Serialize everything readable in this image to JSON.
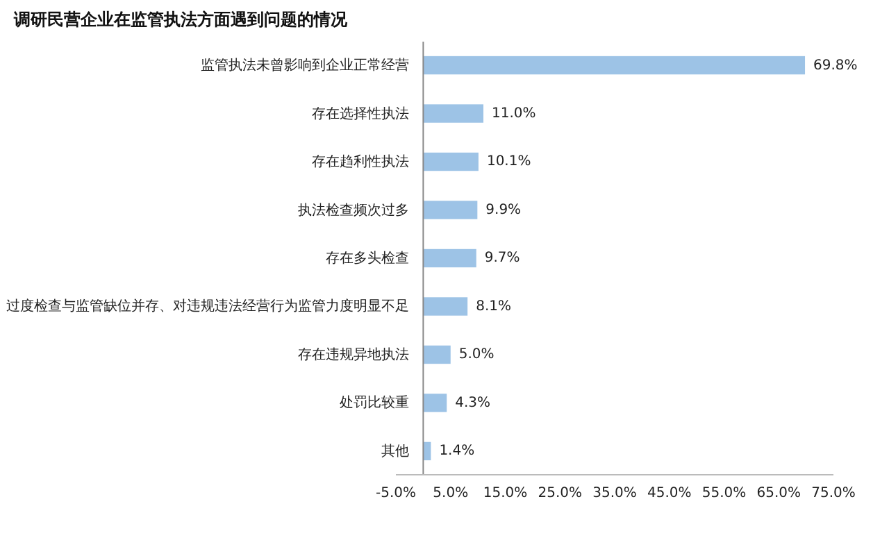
{
  "chart_data": {
    "type": "bar",
    "orientation": "horizontal",
    "title": "调研民营企业在监管执法方面遇到问题的情况",
    "categories": [
      "监管执法未曾影响到企业正常经营",
      "存在选择性执法",
      "存在趋利性执法",
      "执法检查频次过多",
      "存在多头检查",
      "过度检查与监管缺位并存、对违规违法经营行为监管力度明显不足",
      "存在违规异地执法",
      "处罚比较重",
      "其他"
    ],
    "values": [
      69.8,
      11.0,
      10.1,
      9.9,
      9.7,
      8.1,
      5.0,
      4.3,
      1.4
    ],
    "value_labels": [
      "69.8%",
      "11.0%",
      "10.1%",
      "9.9%",
      "9.7%",
      "8.1%",
      "5.0%",
      "4.3%",
      "1.4%"
    ],
    "color": "#9dc3e6",
    "xlim": [
      -5,
      75
    ],
    "xticks": [
      {
        "value": -5,
        "label": "-5.0%"
      },
      {
        "value": 5,
        "label": "5.0%"
      },
      {
        "value": 15,
        "label": "15.0%"
      },
      {
        "value": 25,
        "label": "25.0%"
      },
      {
        "value": 35,
        "label": "35.0%"
      },
      {
        "value": 45,
        "label": "45.0%"
      },
      {
        "value": 55,
        "label": "55.0%"
      },
      {
        "value": 65,
        "label": "65.0%"
      },
      {
        "value": 75,
        "label": "75.0%"
      }
    ]
  }
}
